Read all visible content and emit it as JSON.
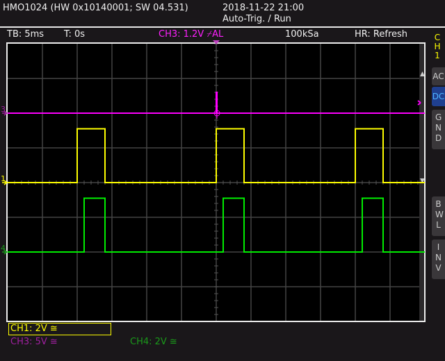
{
  "header": {
    "device": "HMO1024 (HW 0x10140001; SW 04.531)",
    "datetime": "2018-11-22 21:00",
    "status": "Auto-Trig. / Run"
  },
  "infobar": {
    "timebase": "TB: 5ms",
    "trigger_time": "T: 0s",
    "trigger": "CH3: 1.2V ⌿AL",
    "sample_rate": "100kSa",
    "acq_mode": "HR: Refresh"
  },
  "side_panel": {
    "channel": "CH1",
    "buttons": [
      {
        "label": "AC",
        "active": false
      },
      {
        "label": "DC",
        "active": true
      },
      {
        "label": "GND",
        "active": false
      },
      {
        "label": "BWL",
        "active": false
      },
      {
        "label": "INV",
        "active": false
      }
    ]
  },
  "channels": [
    {
      "label": "CH1: 2V ≅",
      "color": "#ffff00",
      "selected": true
    },
    {
      "label": "CH3: 5V ≅",
      "color": "#a020a0",
      "selected": false
    },
    {
      "label": "CH4: 2V ≅",
      "color": "#1a9a1a",
      "selected": false
    }
  ],
  "chart_data": {
    "type": "line",
    "xlabel": "",
    "ylabel": "",
    "x_unit": "ms",
    "xlim": [
      -30,
      30
    ],
    "divisions": {
      "x": 12,
      "y": 8
    },
    "grid": true,
    "series": [
      {
        "name": "3",
        "color": "#ff00ff",
        "volts_per_div": 5,
        "offset_div": 2,
        "points": [
          [
            -30,
            0
          ],
          [
            0,
            0
          ],
          [
            0,
            3
          ],
          [
            0.1,
            3
          ],
          [
            0.1,
            0
          ],
          [
            30,
            0
          ]
        ]
      },
      {
        "name": "1",
        "color": "#ffff00",
        "volts_per_div": 2,
        "offset_div": 0,
        "points": [
          [
            -30,
            0
          ],
          [
            -20,
            0
          ],
          [
            -20,
            3.1
          ],
          [
            -16,
            3.1
          ],
          [
            -16,
            0
          ],
          [
            0,
            0
          ],
          [
            0,
            3.1
          ],
          [
            4,
            3.1
          ],
          [
            4,
            0
          ],
          [
            20,
            0
          ],
          [
            20,
            3.1
          ],
          [
            24,
            3.1
          ],
          [
            24,
            0
          ],
          [
            30,
            0
          ]
        ]
      },
      {
        "name": "4",
        "color": "#00ee00",
        "volts_per_div": 2,
        "offset_div": -2,
        "points": [
          [
            -30,
            0
          ],
          [
            -19,
            0
          ],
          [
            -19,
            3.1
          ],
          [
            -16,
            3.1
          ],
          [
            -16,
            0
          ],
          [
            1,
            0
          ],
          [
            1,
            3.1
          ],
          [
            4,
            3.1
          ],
          [
            4,
            0
          ],
          [
            21,
            0
          ],
          [
            21,
            3.1
          ],
          [
            24,
            3.1
          ],
          [
            24,
            0
          ],
          [
            30,
            0
          ]
        ]
      }
    ]
  }
}
